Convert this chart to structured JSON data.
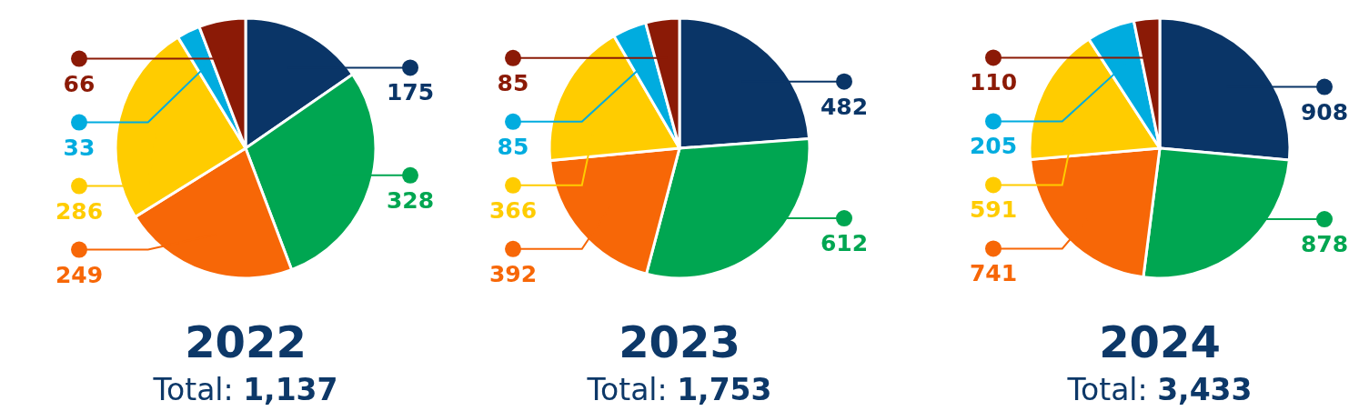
{
  "chart_data": [
    {
      "type": "pie",
      "title": "2022",
      "subtitle": "Total: 1,137",
      "categories": [
        null,
        null,
        null,
        null,
        null,
        null
      ],
      "values": [
        175,
        328,
        249,
        286,
        33,
        66
      ],
      "colors": [
        "#0a3567",
        "#00a651",
        "#f76707",
        "#ffcc00",
        "#00acdf",
        "#8b1a06"
      ],
      "data_labels": true
    },
    {
      "type": "pie",
      "title": "2023",
      "subtitle": "Total: 1,753",
      "categories": [
        null,
        null,
        null,
        null,
        null,
        null
      ],
      "values": [
        482,
        612,
        392,
        366,
        85,
        85
      ],
      "colors": [
        "#0a3567",
        "#00a651",
        "#f76707",
        "#ffcc00",
        "#00acdf",
        "#8b1a06"
      ],
      "data_labels": true
    },
    {
      "type": "pie",
      "title": "2024",
      "subtitle": "Total: 3,433",
      "categories": [
        null,
        null,
        null,
        null,
        null,
        null
      ],
      "values": [
        908,
        878,
        741,
        591,
        205,
        110
      ],
      "colors": [
        "#0a3567",
        "#00a651",
        "#f76707",
        "#ffcc00",
        "#00acdf",
        "#8b1a06"
      ],
      "data_labels": true
    }
  ]
}
